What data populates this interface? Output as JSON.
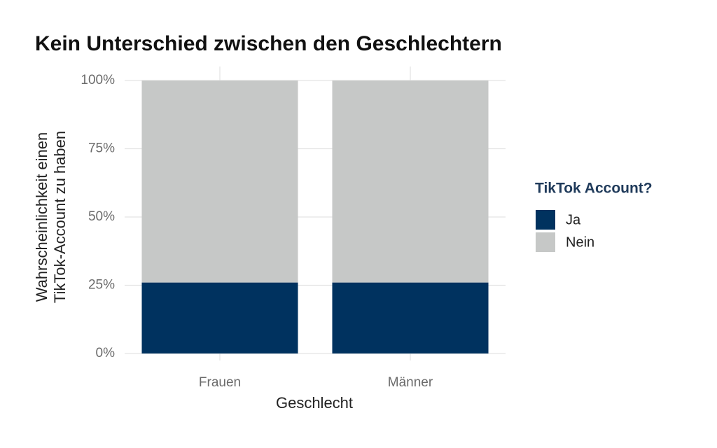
{
  "chart_data": {
    "type": "stacked_bar",
    "title": "Kein Unterschied zwischen den Geschlechtern",
    "x_label": "Geschlecht",
    "y_label": [
      "Wahrscheinlichkeit einen",
      "TikTok-Account zu haben"
    ],
    "categories": [
      "Frauen",
      "Männer"
    ],
    "series": [
      {
        "name": "Ja",
        "color": "#00325f",
        "values": [
          26,
          26
        ]
      },
      {
        "name": "Nein",
        "color": "#c6c8c7",
        "values": [
          74,
          74
        ]
      }
    ],
    "ylim": [
      0,
      100
    ],
    "yticks": [
      {
        "value": 0,
        "label": "0%"
      },
      {
        "value": 25,
        "label": "25%"
      },
      {
        "value": 50,
        "label": "50%"
      },
      {
        "value": 75,
        "label": "75%"
      },
      {
        "value": 100,
        "label": "100%"
      }
    ],
    "grid": true,
    "legend_title": "TikTok Account?",
    "legend_position": "right"
  }
}
